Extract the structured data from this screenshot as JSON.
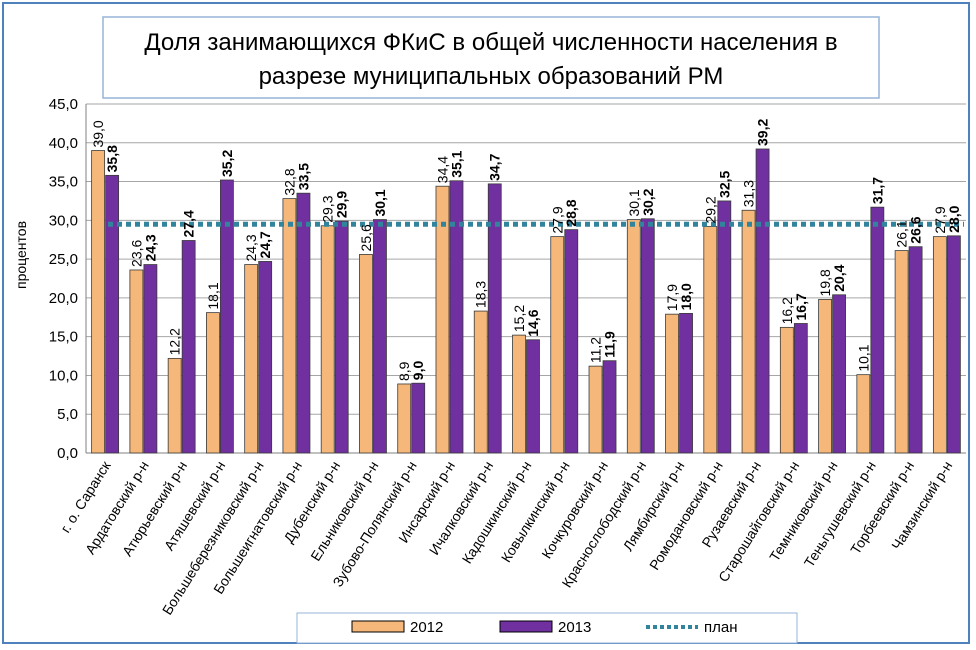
{
  "chart_data": {
    "type": "bar",
    "title_line1": "Доля занимающихся ФКиС в общей численности населения в",
    "title_line2": "разрезе  муниципальных образований РМ",
    "ylabel": "процентов",
    "ylim": [
      0,
      45
    ],
    "ytick_labels": [
      "0,0",
      "5,0",
      "10,0",
      "15,0",
      "20,0",
      "25,0",
      "30,0",
      "35,0",
      "40,0",
      "45,0"
    ],
    "grid": true,
    "legend_position": "bottom",
    "categories": [
      "г. о. Саранск",
      "Ардатовский р-н",
      "Атюрьевский р-н",
      "Атяшевский р-н",
      "Большеберезниковский р-н",
      "Большеигнатовский р-н",
      "Дубенский р-н",
      "Ельниковский р-н",
      "Зубово-Полянский р-н",
      "Инсарский р-н",
      "Ичалковский р-н",
      "Кадошкинский р-н",
      "Ковылкинский р-н",
      "Кочкуровский р-н",
      "Краснослободский р-н",
      "Лямбирский р-н",
      "Ромодановский р-н",
      "Рузаевский р-н",
      "Старошайговский р-н",
      "Темниковский р-н",
      "Теньгушевский р-н",
      "Торбеевский р-н",
      "Чамзинский р-н"
    ],
    "series": [
      {
        "name": "2012",
        "color": "#f5b87a",
        "values": [
          39.0,
          23.6,
          12.2,
          18.1,
          24.3,
          32.8,
          29.3,
          25.6,
          8.9,
          34.4,
          18.3,
          15.2,
          27.9,
          11.2,
          30.1,
          17.9,
          29.2,
          31.3,
          16.2,
          19.8,
          10.1,
          26.1,
          27.9
        ],
        "labels": [
          "39,0",
          "23,6",
          "12,2",
          "18,1",
          "24,3",
          "32,8",
          "29,3",
          "25,6",
          "8,9",
          "34,4",
          "18,3",
          "15,2",
          "27,9",
          "11,2",
          "30,1",
          "17,9",
          "29,2",
          "31,3",
          "16,2",
          "19,8",
          "10,1",
          "26,1",
          "27,9"
        ]
      },
      {
        "name": "2013",
        "color": "#7030a0",
        "values": [
          35.8,
          24.3,
          27.4,
          35.2,
          24.7,
          33.5,
          29.9,
          30.1,
          9.0,
          35.1,
          34.7,
          14.6,
          28.8,
          11.9,
          30.2,
          18.0,
          32.5,
          39.2,
          16.7,
          20.4,
          31.7,
          26.6,
          28.0
        ],
        "labels": [
          "35,8",
          "24,3",
          "27,4",
          "35,2",
          "24,7",
          "33,5",
          "29,9",
          "30,1",
          "9,0",
          "35,1",
          "34,7",
          "14,6",
          "28,8",
          "11,9",
          "30,2",
          "18,0",
          "32,5",
          "39,2",
          "16,7",
          "20,4",
          "31,7",
          "26,6",
          "28,0"
        ]
      }
    ],
    "plan": {
      "name": "план",
      "value": 29.5,
      "color": "#31849b"
    }
  }
}
